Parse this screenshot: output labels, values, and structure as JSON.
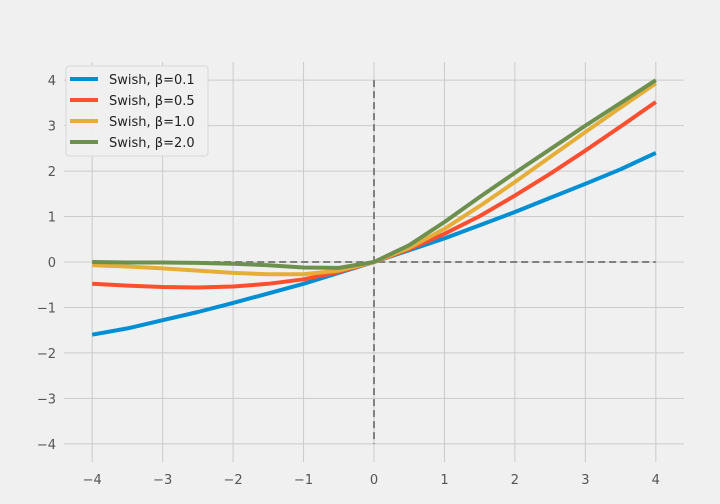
{
  "chart_data": {
    "type": "line",
    "title": "",
    "xlabel": "",
    "ylabel": "",
    "xlim": [
      -4.4,
      4.4
    ],
    "ylim": [
      -4.4,
      4.4
    ],
    "x_ticks": [
      -4,
      -3,
      -2,
      -1,
      0,
      1,
      2,
      3,
      4
    ],
    "y_ticks": [
      -4,
      -3,
      -2,
      -1,
      0,
      1,
      2,
      3,
      4
    ],
    "x_tick_labels": [
      "−4",
      "−3",
      "−2",
      "−1",
      "0",
      "1",
      "2",
      "3",
      "4"
    ],
    "y_tick_labels": [
      "−4",
      "−3",
      "−2",
      "−1",
      "0",
      "1",
      "2",
      "3",
      "4"
    ],
    "grid": true,
    "legend_position": "top-left",
    "x": [
      -4,
      -3.5,
      -3,
      -2.5,
      -2,
      -1.5,
      -1,
      -0.5,
      0,
      0.5,
      1,
      1.5,
      2,
      2.5,
      3,
      3.5,
      4
    ],
    "series": [
      {
        "name": "Swish, β=0.1",
        "color": "#008fd5",
        "values": [
          -1.6,
          -1.46,
          -1.28,
          -1.1,
          -0.9,
          -0.69,
          -0.48,
          -0.24,
          0.0,
          0.26,
          0.52,
          0.81,
          1.1,
          1.41,
          1.72,
          2.04,
          2.4
        ]
      },
      {
        "name": "Swish, β=0.5",
        "color": "#fc4f30",
        "values": [
          -0.48,
          -0.52,
          -0.55,
          -0.56,
          -0.54,
          -0.48,
          -0.38,
          -0.22,
          0.0,
          0.28,
          0.62,
          1.01,
          1.46,
          1.94,
          2.45,
          2.98,
          3.52
        ]
      },
      {
        "name": "Swish, β=1.0",
        "color": "#e5ae38",
        "values": [
          -0.07,
          -0.1,
          -0.14,
          -0.19,
          -0.24,
          -0.27,
          -0.27,
          -0.19,
          0.0,
          0.31,
          0.73,
          1.23,
          1.76,
          2.31,
          2.86,
          3.4,
          3.93
        ]
      },
      {
        "name": "Swish, β=2.0",
        "color": "#6d904f",
        "values": [
          0.0,
          -0.01,
          -0.01,
          -0.02,
          -0.04,
          -0.07,
          -0.12,
          -0.13,
          0.0,
          0.37,
          0.88,
          1.43,
          1.96,
          2.48,
          3.0,
          3.5,
          4.0
        ]
      }
    ]
  }
}
